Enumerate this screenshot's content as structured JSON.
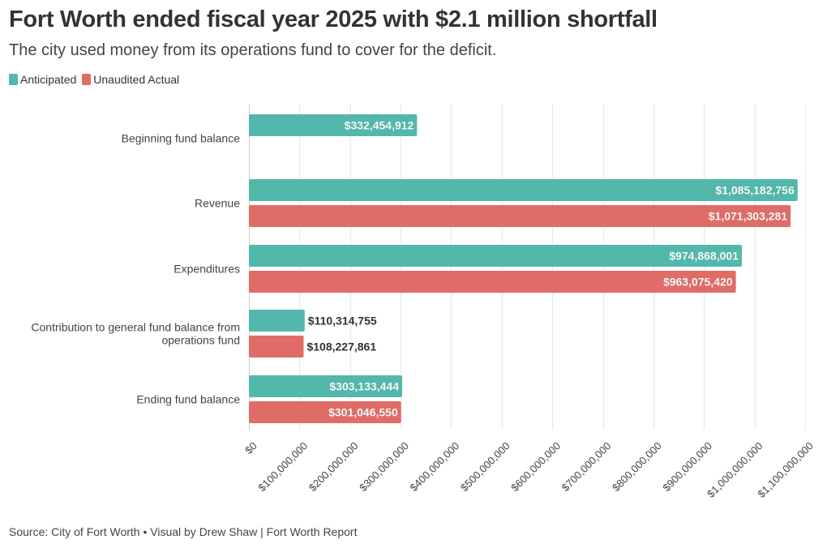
{
  "chart_data": {
    "type": "bar",
    "orientation": "horizontal",
    "title": "Fort Worth ended fiscal year 2025 with $2.1 million shortfall",
    "subtitle": "The city used money from its operations fund to cover for the deficit.",
    "categories": [
      "Beginning fund balance",
      "Revenue",
      "Expenditures",
      "Contribution to general fund balance from operations fund",
      "Ending fund balance"
    ],
    "category_lines": [
      [
        "Beginning fund balance"
      ],
      [
        "Revenue"
      ],
      [
        "Expenditures"
      ],
      [
        "Contribution to general fund balance from",
        "operations fund"
      ],
      [
        "Ending fund balance"
      ]
    ],
    "series": [
      {
        "name": "Anticipated",
        "color": "#53b8ac",
        "values": [
          332454912,
          1085182756,
          974868001,
          110314755,
          303133444
        ],
        "labels": [
          "$332,454,912",
          "$1,085,182,756",
          "$974,868,001",
          "$110,314,755",
          "$303,133,444"
        ]
      },
      {
        "name": "Unaudited Actual",
        "color": "#e06c68",
        "values": [
          null,
          1071303281,
          963075420,
          108227861,
          301046550
        ],
        "labels": [
          "",
          "$1,071,303,281",
          "$963,075,420",
          "$108,227,861",
          "$301,046,550"
        ]
      }
    ],
    "x_ticks": [
      0,
      100000000,
      200000000,
      300000000,
      400000000,
      500000000,
      600000000,
      700000000,
      800000000,
      900000000,
      1000000000,
      1100000000
    ],
    "x_tick_labels": [
      "$0",
      "$100,000,000",
      "$200,000,000",
      "$300,000,000",
      "$400,000,000",
      "$500,000,000",
      "$600,000,000",
      "$700,000,000",
      "$800,000,000",
      "$900,000,000",
      "$1,000,000,000",
      "$1,100,000,000"
    ],
    "xlim": [
      0,
      1100000000
    ],
    "grid": true,
    "legend_position": "top-left",
    "source": "Source: City of Fort Worth • Visual by Drew Shaw | Fort Worth Report"
  }
}
